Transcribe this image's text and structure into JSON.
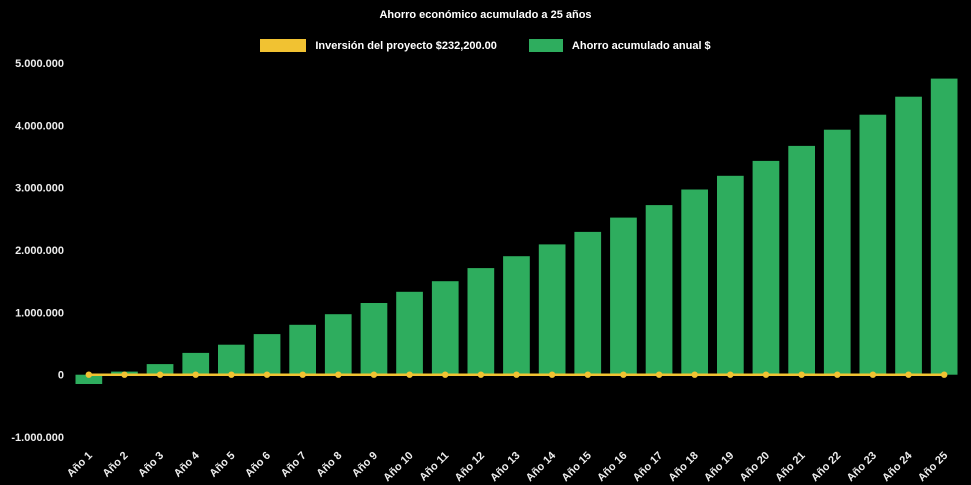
{
  "chart_data": {
    "type": "bar",
    "title": "Ahorro económico acumulado a 25 años",
    "xlabel": "",
    "ylabel": "",
    "background": "#000000",
    "text_color": "#FFFFFF",
    "axis_text_color": "#EDEDED",
    "grid": false,
    "legend_position": "top",
    "legend": [
      {
        "label": "Inversión del proyecto $232,200.00",
        "color": "#F1C232",
        "series_type": "line"
      },
      {
        "label": "Ahorro acumulado anual $",
        "color": "#2EAD5E",
        "series_type": "bar"
      }
    ],
    "categories": [
      "Año 1",
      "Año 2",
      "Año 3",
      "Año 4",
      "Año 5",
      "Año 6",
      "Año 7",
      "Año 8",
      "Año 9",
      "Año 10",
      "Año 11",
      "Año 12",
      "Año 13",
      "Año 14",
      "Año 15",
      "Año 16",
      "Año 17",
      "Año 18",
      "Año 19",
      "Año 20",
      "Año 21",
      "Año 22",
      "Año 23",
      "Año 24",
      "Año 25"
    ],
    "series": [
      {
        "name": "Ahorro acumulado anual $",
        "type": "bar",
        "color": "#2EAD5E",
        "values": [
          -150000,
          50000,
          170000,
          350000,
          480000,
          650000,
          800000,
          970000,
          1150000,
          1330000,
          1500000,
          1710000,
          1900000,
          2090000,
          2290000,
          2520000,
          2720000,
          2970000,
          3190000,
          3430000,
          3670000,
          3930000,
          4170000,
          4460000,
          4750000
        ]
      },
      {
        "name": "Inversión del proyecto $232,200.00",
        "type": "line",
        "color": "#F1C232",
        "constant_value": 0
      }
    ],
    "ylim": [
      -1000000,
      5000000
    ],
    "y_ticks": [
      {
        "value": 5000000,
        "label": "5.000.000"
      },
      {
        "value": 4000000,
        "label": "4.000.000"
      },
      {
        "value": 3000000,
        "label": "3.000.000"
      },
      {
        "value": 2000000,
        "label": "2.000.000"
      },
      {
        "value": 1000000,
        "label": "1.000.000"
      },
      {
        "value": 0,
        "label": "0"
      },
      {
        "value": -1000000,
        "label": "-1.000.000"
      }
    ]
  }
}
